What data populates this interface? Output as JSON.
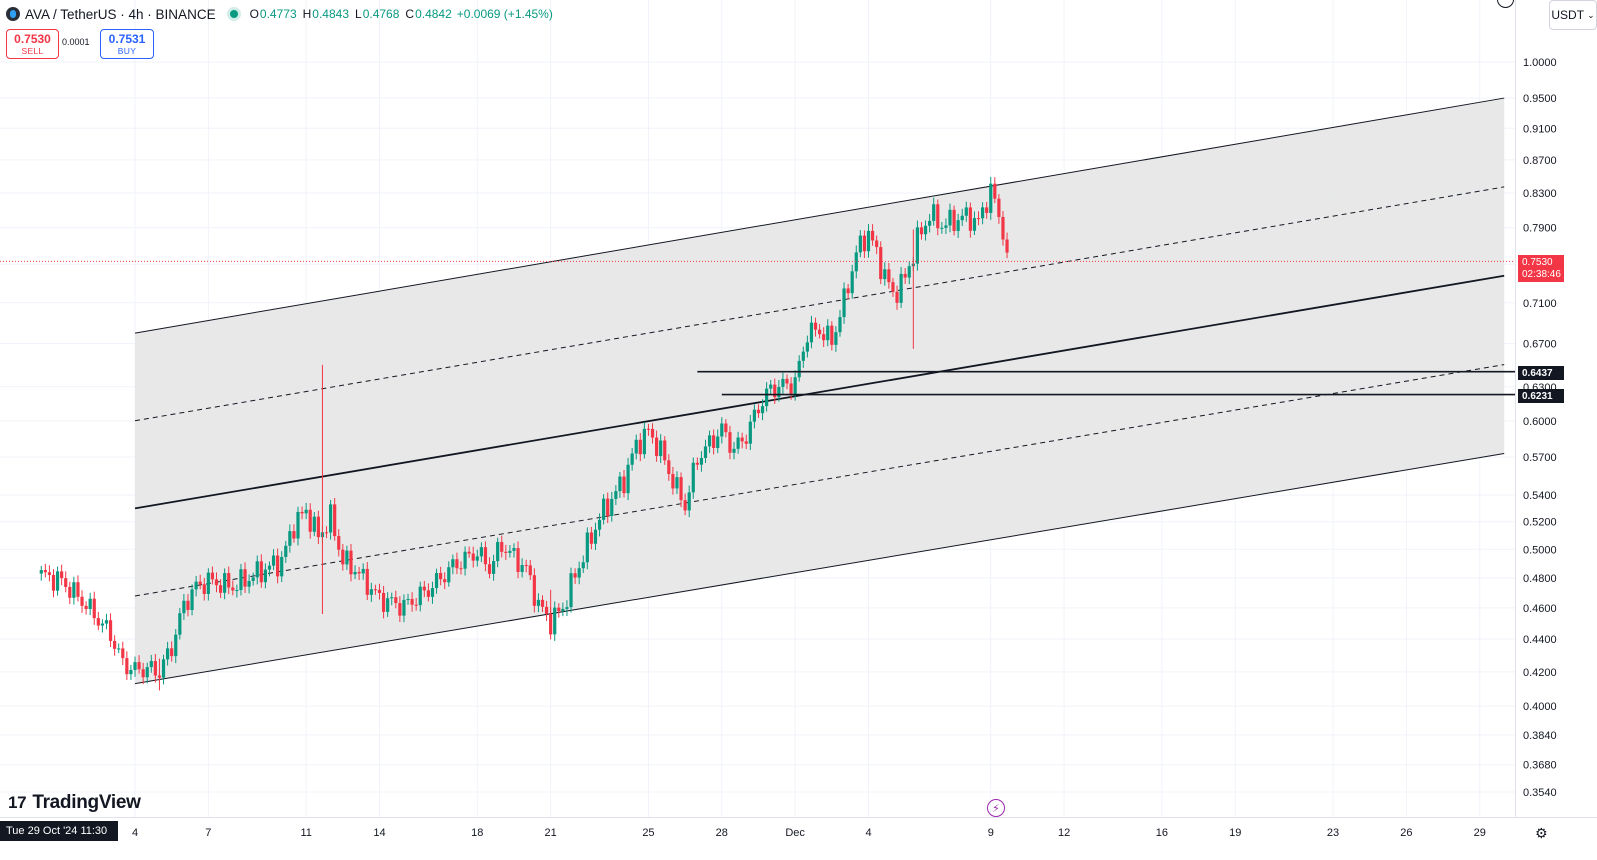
{
  "header": {
    "title": "AVA / TetherUS · 4h · BINANCE",
    "open_label": "O",
    "open": "0.4773",
    "high_label": "H",
    "high": "0.4843",
    "low_label": "L",
    "low": "0.4768",
    "close_label": "C",
    "close": "0.4842",
    "change": "+0.0069 (+1.45%)"
  },
  "trade": {
    "sell_price": "0.7530",
    "sell_label": "SELL",
    "spread": "0.0001",
    "buy_price": "0.7531",
    "buy_label": "BUY"
  },
  "currency": "USDT",
  "price_tags": {
    "current": "0.7530",
    "countdown": "02:38:46",
    "level1": "0.6437",
    "level2": "0.6231"
  },
  "date_tag": "Tue 29 Oct '24   11:30",
  "brand": "TradingView",
  "colors": {
    "up": "#089981",
    "down": "#f23645",
    "channel_fill": "#e4e4e4",
    "level": "#131722"
  },
  "chart_data": {
    "type": "candlestick",
    "y_scale": "log",
    "ylim": [
      0.35,
      1.05
    ],
    "y_ticks": [
      1.0,
      0.95,
      0.91,
      0.87,
      0.83,
      0.79,
      0.75,
      0.71,
      0.67,
      0.63,
      0.6,
      0.57,
      0.54,
      0.52,
      0.5,
      0.48,
      0.46,
      0.44,
      0.42,
      0.4,
      0.384,
      0.368,
      0.354
    ],
    "y_tick_labels": [
      "1.0000",
      "0.9500",
      "0.9100",
      "0.8700",
      "0.8300",
      "0.7900",
      "0.7500",
      "0.7100",
      "0.6700",
      "0.6300",
      "0.6000",
      "0.5700",
      "0.5400",
      "0.5200",
      "0.5000",
      "0.4800",
      "0.4600",
      "0.4400",
      "0.4200",
      "0.4000",
      "0.3840",
      "0.3680",
      "0.3540"
    ],
    "x_ticks": [
      {
        "label": "4",
        "date": "2024-11-04"
      },
      {
        "label": "7",
        "date": "2024-11-07"
      },
      {
        "label": "11",
        "date": "2024-11-11"
      },
      {
        "label": "14",
        "date": "2024-11-14"
      },
      {
        "label": "18",
        "date": "2024-11-18"
      },
      {
        "label": "21",
        "date": "2024-11-21"
      },
      {
        "label": "25",
        "date": "2024-11-25"
      },
      {
        "label": "28",
        "date": "2024-11-28"
      },
      {
        "label": "Dec",
        "date": "2024-12-01"
      },
      {
        "label": "4",
        "date": "2024-12-04"
      },
      {
        "label": "9",
        "date": "2024-12-09"
      },
      {
        "label": "12",
        "date": "2024-12-12"
      },
      {
        "label": "16",
        "date": "2024-12-16"
      },
      {
        "label": "19",
        "date": "2024-12-19"
      },
      {
        "label": "23",
        "date": "2024-12-23"
      },
      {
        "label": "26",
        "date": "2024-12-26"
      },
      {
        "label": "29",
        "date": "2024-12-29"
      }
    ],
    "price_path": [
      [
        "2024-10-31",
        0.483
      ],
      [
        "2024-11-01",
        0.478
      ],
      [
        "2024-11-02",
        0.462
      ],
      [
        "2024-11-03",
        0.443
      ],
      [
        "2024-11-03T12",
        0.425
      ],
      [
        "2024-11-04",
        0.421
      ],
      [
        "2024-11-04T12",
        0.422
      ],
      [
        "2024-11-05",
        0.42
      ],
      [
        "2024-11-05T12",
        0.435
      ],
      [
        "2024-11-06",
        0.462
      ],
      [
        "2024-11-06T12",
        0.474
      ],
      [
        "2024-11-07",
        0.478
      ],
      [
        "2024-11-08",
        0.474
      ],
      [
        "2024-11-09",
        0.483
      ],
      [
        "2024-11-10",
        0.492
      ],
      [
        "2024-11-10T12",
        0.518
      ],
      [
        "2024-11-11",
        0.528
      ],
      [
        "2024-11-11T12",
        0.509
      ],
      [
        "2024-11-12",
        0.523
      ],
      [
        "2024-11-12T12",
        0.492
      ],
      [
        "2024-11-13",
        0.486
      ],
      [
        "2024-11-14",
        0.466
      ],
      [
        "2024-11-15",
        0.461
      ],
      [
        "2024-11-16",
        0.472
      ],
      [
        "2024-11-17",
        0.488
      ],
      [
        "2024-11-18",
        0.498
      ],
      [
        "2024-11-18T12",
        0.487
      ],
      [
        "2024-11-19",
        0.503
      ],
      [
        "2024-11-20",
        0.486
      ],
      [
        "2024-11-20T12",
        0.462
      ],
      [
        "2024-11-21",
        0.451
      ],
      [
        "2024-11-21T12",
        0.46
      ],
      [
        "2024-11-22",
        0.482
      ],
      [
        "2024-11-23",
        0.523
      ],
      [
        "2024-11-24",
        0.552
      ],
      [
        "2024-11-24T12",
        0.58
      ],
      [
        "2024-11-25",
        0.591
      ],
      [
        "2024-11-25T12",
        0.575
      ],
      [
        "2024-11-26",
        0.551
      ],
      [
        "2024-11-26T12",
        0.532
      ],
      [
        "2024-11-27",
        0.569
      ],
      [
        "2024-11-28",
        0.593
      ],
      [
        "2024-11-28T12",
        0.576
      ],
      [
        "2024-11-29",
        0.588
      ],
      [
        "2024-11-29T12",
        0.612
      ],
      [
        "2024-11-30",
        0.628
      ],
      [
        "2024-12-01",
        0.634
      ],
      [
        "2024-12-01T12",
        0.68
      ],
      [
        "2024-12-02",
        0.683
      ],
      [
        "2024-12-02T12",
        0.672
      ],
      [
        "2024-12-03",
        0.712
      ],
      [
        "2024-12-03T12",
        0.762
      ],
      [
        "2024-12-04",
        0.785
      ],
      [
        "2024-12-04T12",
        0.749
      ],
      [
        "2024-12-05",
        0.718
      ],
      [
        "2024-12-05T12",
        0.735
      ],
      [
        "2024-12-06",
        0.776
      ],
      [
        "2024-12-06T12",
        0.805
      ],
      [
        "2024-12-07",
        0.793
      ],
      [
        "2024-12-08",
        0.803
      ],
      [
        "2024-12-08T12",
        0.796
      ],
      [
        "2024-12-09",
        0.834
      ],
      [
        "2024-12-09T12",
        0.788
      ],
      [
        "2024-12-09T16",
        0.753
      ]
    ],
    "spikes": [
      {
        "date": "2024-11-11T16",
        "low": 0.456,
        "high": 0.65
      },
      {
        "date": "2024-12-05T20",
        "low": 0.665,
        "high": 0.788
      },
      {
        "date": "2024-11-05",
        "low": 0.409,
        "high": 0.428
      },
      {
        "date": "2024-11-21",
        "low": 0.448,
        "high": 0.472
      }
    ],
    "channel": {
      "start": {
        "date": "2024-11-04",
        "lower": 0.413,
        "upper": 0.68
      },
      "end": {
        "date": "2024-12-30",
        "lower": 0.573,
        "upper": 0.95
      }
    },
    "levels": [
      {
        "value": 0.6437,
        "from": "2024-11-27"
      },
      {
        "value": 0.6231,
        "from": "2024-11-28"
      }
    ],
    "current_price": 0.753
  }
}
